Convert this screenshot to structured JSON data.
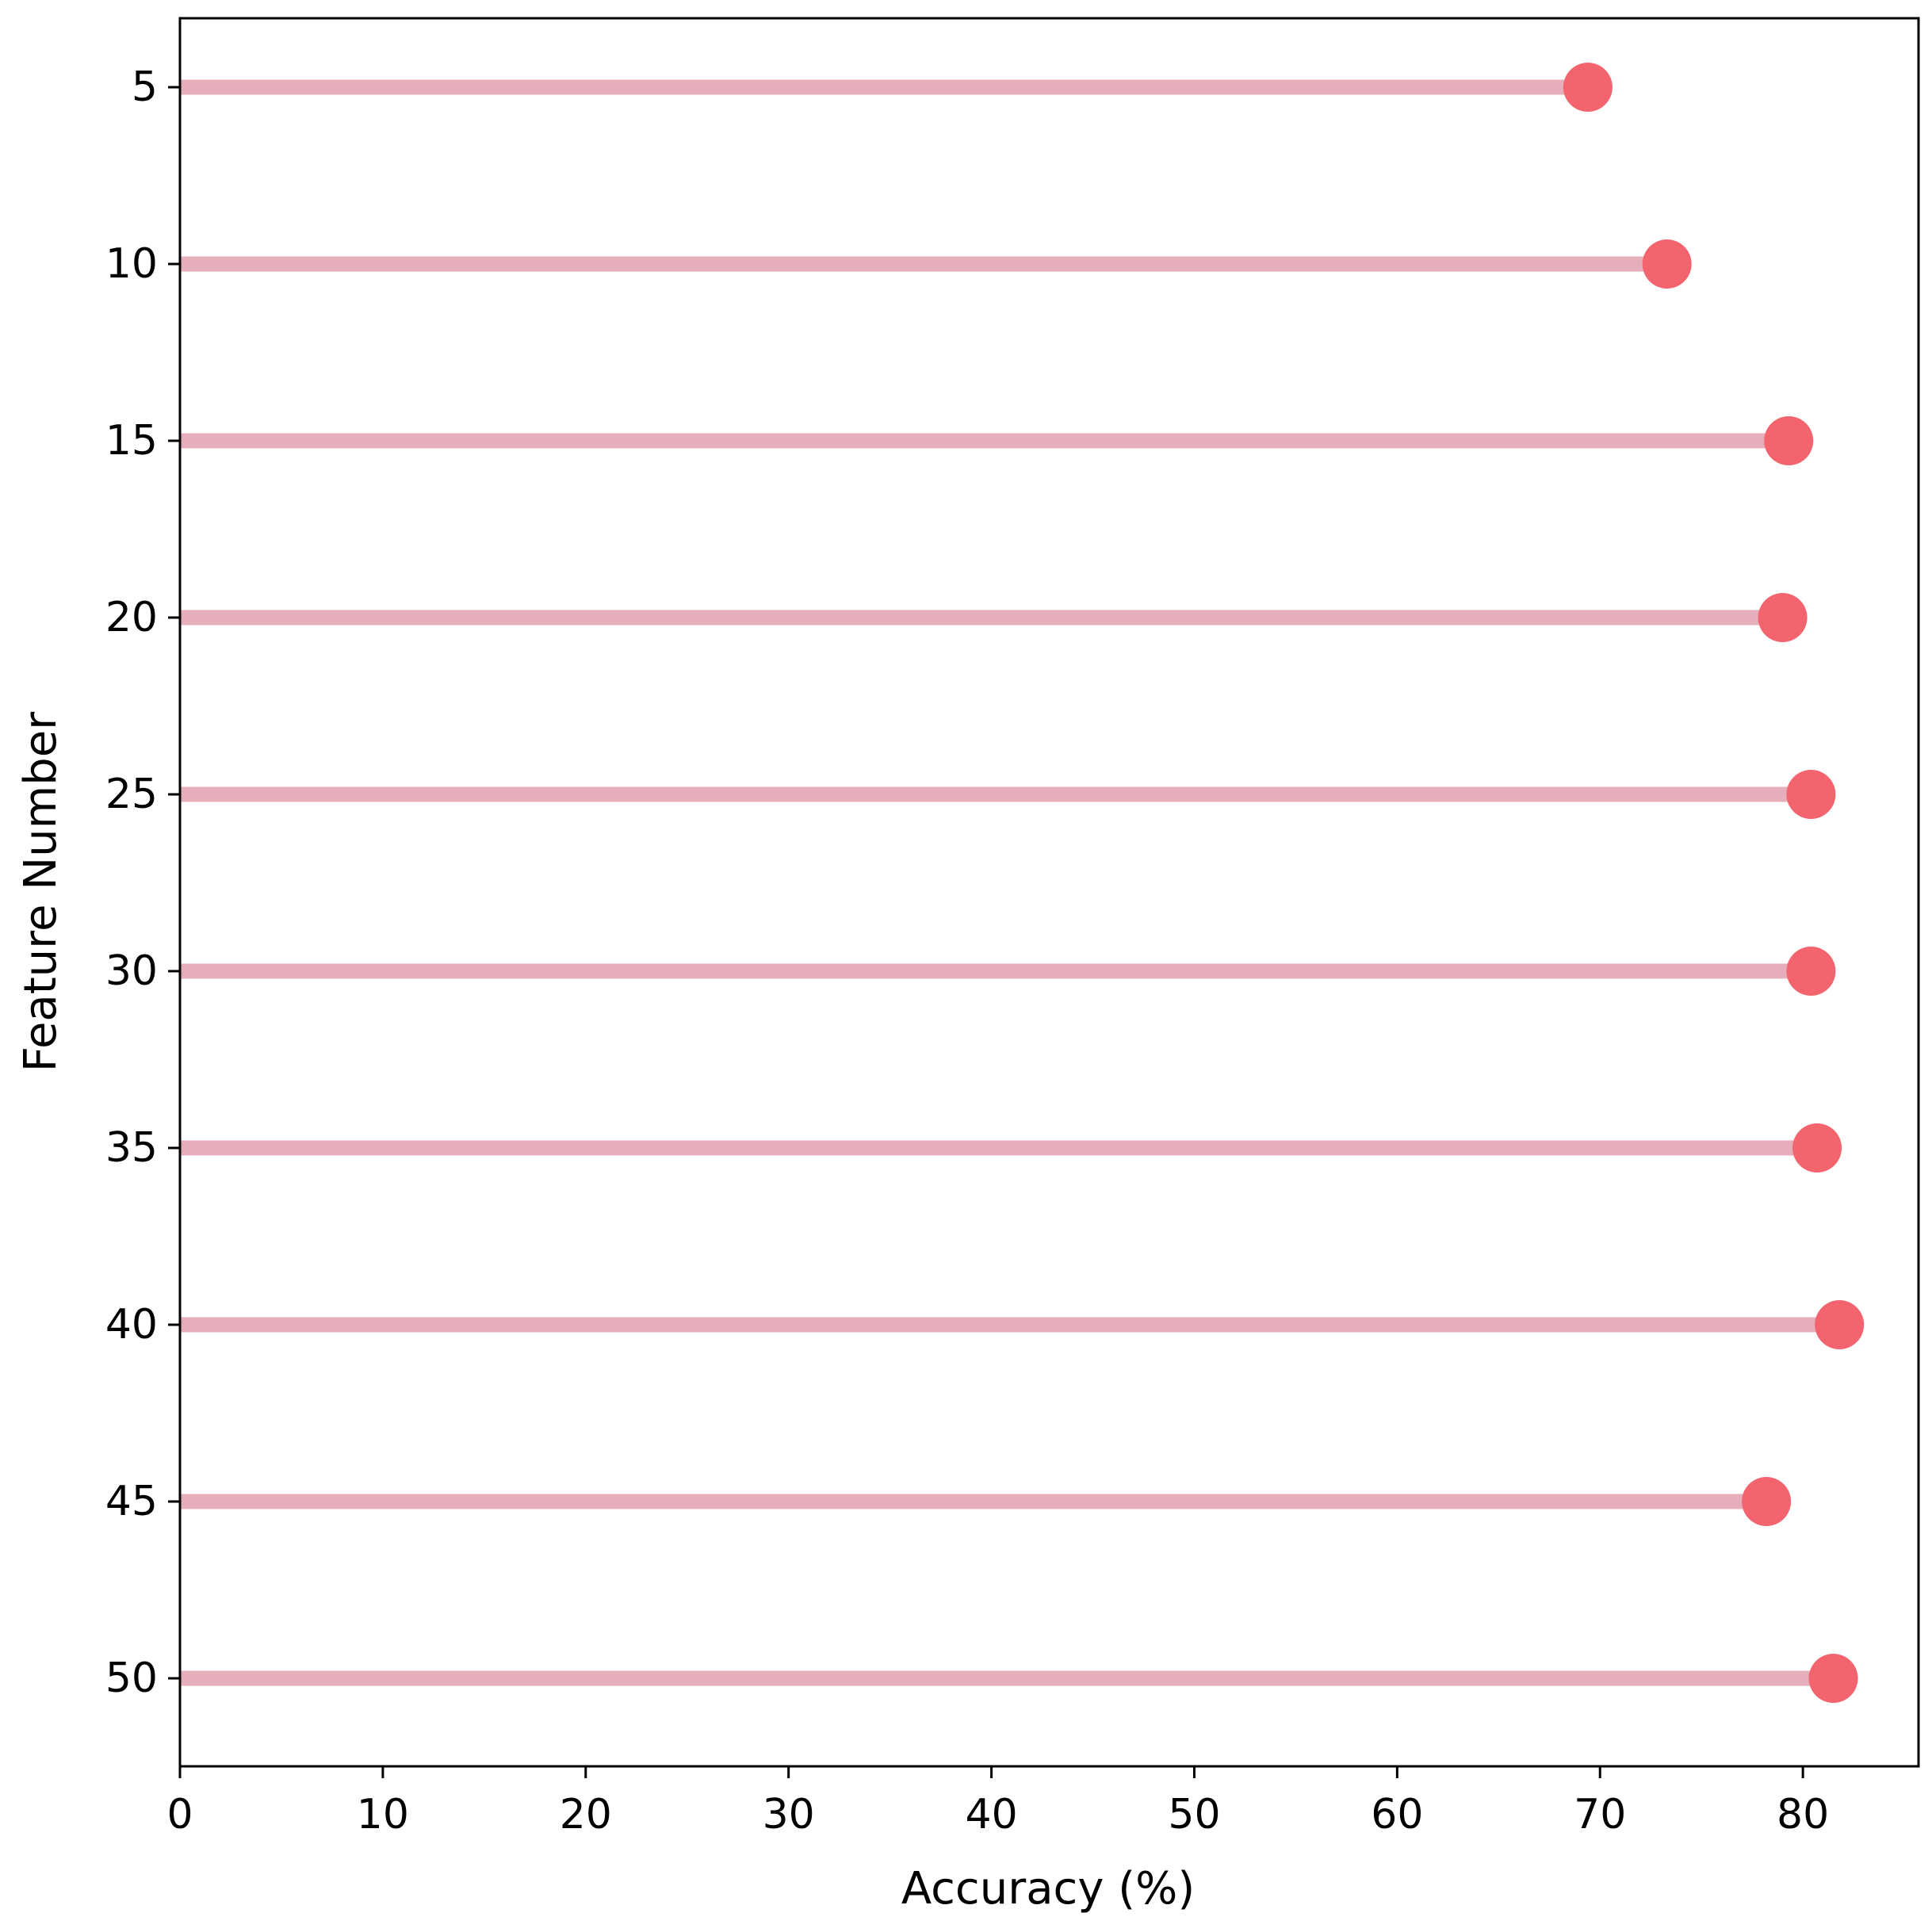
{
  "chart_data": {
    "type": "lollipop",
    "orientation": "horizontal",
    "xlabel": "Accuracy (%)",
    "ylabel": "Feature Number",
    "categories": [
      "5",
      "10",
      "15",
      "20",
      "25",
      "30",
      "35",
      "40",
      "45",
      "50"
    ],
    "values": [
      69.4,
      73.3,
      79.3,
      79.0,
      80.4,
      80.4,
      80.7,
      81.8,
      78.2,
      81.5
    ],
    "xlim": [
      0,
      85.7
    ],
    "xticks": [
      "0",
      "10",
      "20",
      "30",
      "40",
      "50",
      "60",
      "70",
      "80"
    ],
    "grid": false,
    "colors": {
      "stem": "#e5aeba",
      "marker": "#f3646e"
    }
  }
}
